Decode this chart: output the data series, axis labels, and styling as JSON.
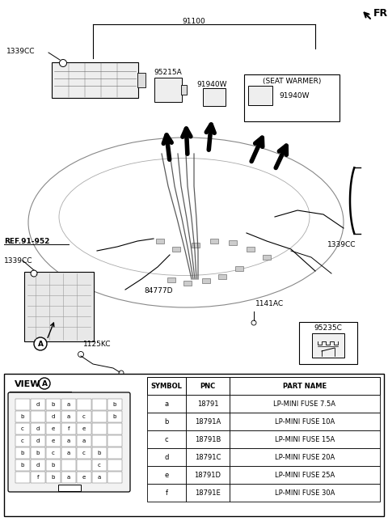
{
  "bg_color": "#ffffff",
  "line_color": "#000000",
  "part_number_top": "91100",
  "fr_label": "FR.",
  "label_1339CC_tl": "1339CC",
  "label_95215A": "95215A",
  "label_91940W_left": "91940W",
  "label_seat_warmer": "(SEAT WARMER)",
  "label_91940W_right": "91940W",
  "label_1339CC_tr": "1339CC",
  "label_ref": "REF.91-952",
  "label_1339CC_bl": "1339CC",
  "label_84777D": "84777D",
  "label_A": "A",
  "label_1125KC": "1125KC",
  "label_1141AC": "1141AC",
  "label_95235C": "95235C",
  "view_a_title": "VIEW",
  "fuse_grid": [
    [
      "",
      "d",
      "b",
      "a",
      "",
      "",
      "b"
    ],
    [
      "b",
      "",
      "d",
      "a",
      "c",
      "",
      "b"
    ],
    [
      "c",
      "d",
      "e",
      "f",
      "e",
      "",
      ""
    ],
    [
      "c",
      "d",
      "e",
      "a",
      "a",
      "",
      ""
    ],
    [
      "b",
      "b",
      "c",
      "a",
      "c",
      "b",
      ""
    ],
    [
      "b",
      "d",
      "b",
      "",
      "",
      "c",
      ""
    ],
    [
      "",
      "f",
      "b",
      "a",
      "e",
      "a",
      ""
    ]
  ],
  "table_headers": [
    "SYMBOL",
    "PNC",
    "PART NAME"
  ],
  "table_rows": [
    [
      "a",
      "18791",
      "LP-MINI FUSE 7.5A"
    ],
    [
      "b",
      "18791A",
      "LP-MINI FUSE 10A"
    ],
    [
      "c",
      "18791B",
      "LP-MINI FUSE 15A"
    ],
    [
      "d",
      "18791C",
      "LP-MINI FUSE 20A"
    ],
    [
      "e",
      "18791D",
      "LP-MINI FUSE 25A"
    ],
    [
      "f",
      "18791E",
      "LP-MINI FUSE 30A"
    ]
  ]
}
